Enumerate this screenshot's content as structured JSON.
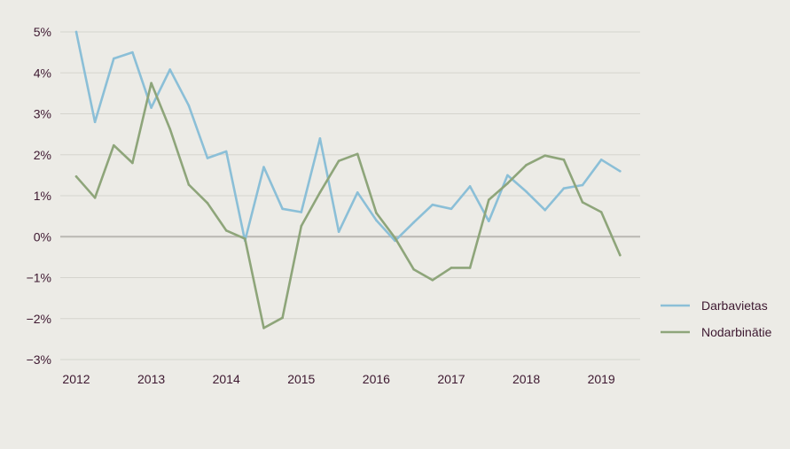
{
  "colors": {
    "background": "#ecebe6",
    "grid": "#d5d4cd",
    "zero_line": "#b9b8b2",
    "text": "#3d1830"
  },
  "chart_data": {
    "type": "line",
    "title": "",
    "xlabel": "",
    "ylabel": "",
    "ylim": [
      -3,
      5
    ],
    "xlim": [
      2012,
      2019.4
    ],
    "y_ticks": [
      5,
      4,
      3,
      2,
      1,
      0,
      -1,
      -2,
      -3
    ],
    "y_tick_labels": [
      "5%",
      "4%",
      "3%",
      "2%",
      "1%",
      "0%",
      "−1%",
      "−2%",
      "−3%"
    ],
    "x_ticks": [
      2012,
      2013,
      2014,
      2015,
      2016,
      2017,
      2018,
      2019
    ],
    "x_tick_labels": [
      "2012",
      "2013",
      "2014",
      "2015",
      "2016",
      "2017",
      "2018",
      "2019"
    ],
    "grid": true,
    "legend_position": "right",
    "x": [
      2012.0,
      2012.25,
      2012.5,
      2012.75,
      2013.0,
      2013.25,
      2013.5,
      2013.75,
      2014.0,
      2014.25,
      2014.5,
      2014.75,
      2015.0,
      2015.25,
      2015.5,
      2015.75,
      2016.0,
      2016.25,
      2016.5,
      2016.75,
      2017.0,
      2017.25,
      2017.5,
      2017.75,
      2018.0,
      2018.25,
      2018.5,
      2018.75,
      2019.0,
      2019.25
    ],
    "series": [
      {
        "name": "Darbavietas",
        "color": "#8bbfd7",
        "values": [
          5.0,
          2.8,
          4.35,
          4.5,
          3.15,
          4.08,
          3.2,
          1.92,
          2.08,
          -0.1,
          1.7,
          0.68,
          0.6,
          2.4,
          0.12,
          1.08,
          0.4,
          -0.1,
          0.35,
          0.78,
          0.68,
          1.23,
          0.38,
          1.5,
          1.1,
          0.65,
          1.18,
          1.26,
          1.88,
          1.6
        ]
      },
      {
        "name": "Nodarbinātie",
        "color": "#8ea57a",
        "values": [
          1.47,
          0.95,
          2.23,
          1.8,
          3.75,
          2.63,
          1.27,
          0.82,
          0.15,
          -0.05,
          -2.23,
          -1.98,
          0.26,
          1.08,
          1.85,
          2.02,
          0.58,
          -0.03,
          -0.8,
          -1.06,
          -0.76,
          -0.76,
          0.9,
          1.3,
          1.75,
          1.98,
          1.88,
          0.84,
          0.6,
          -0.45
        ]
      }
    ]
  }
}
